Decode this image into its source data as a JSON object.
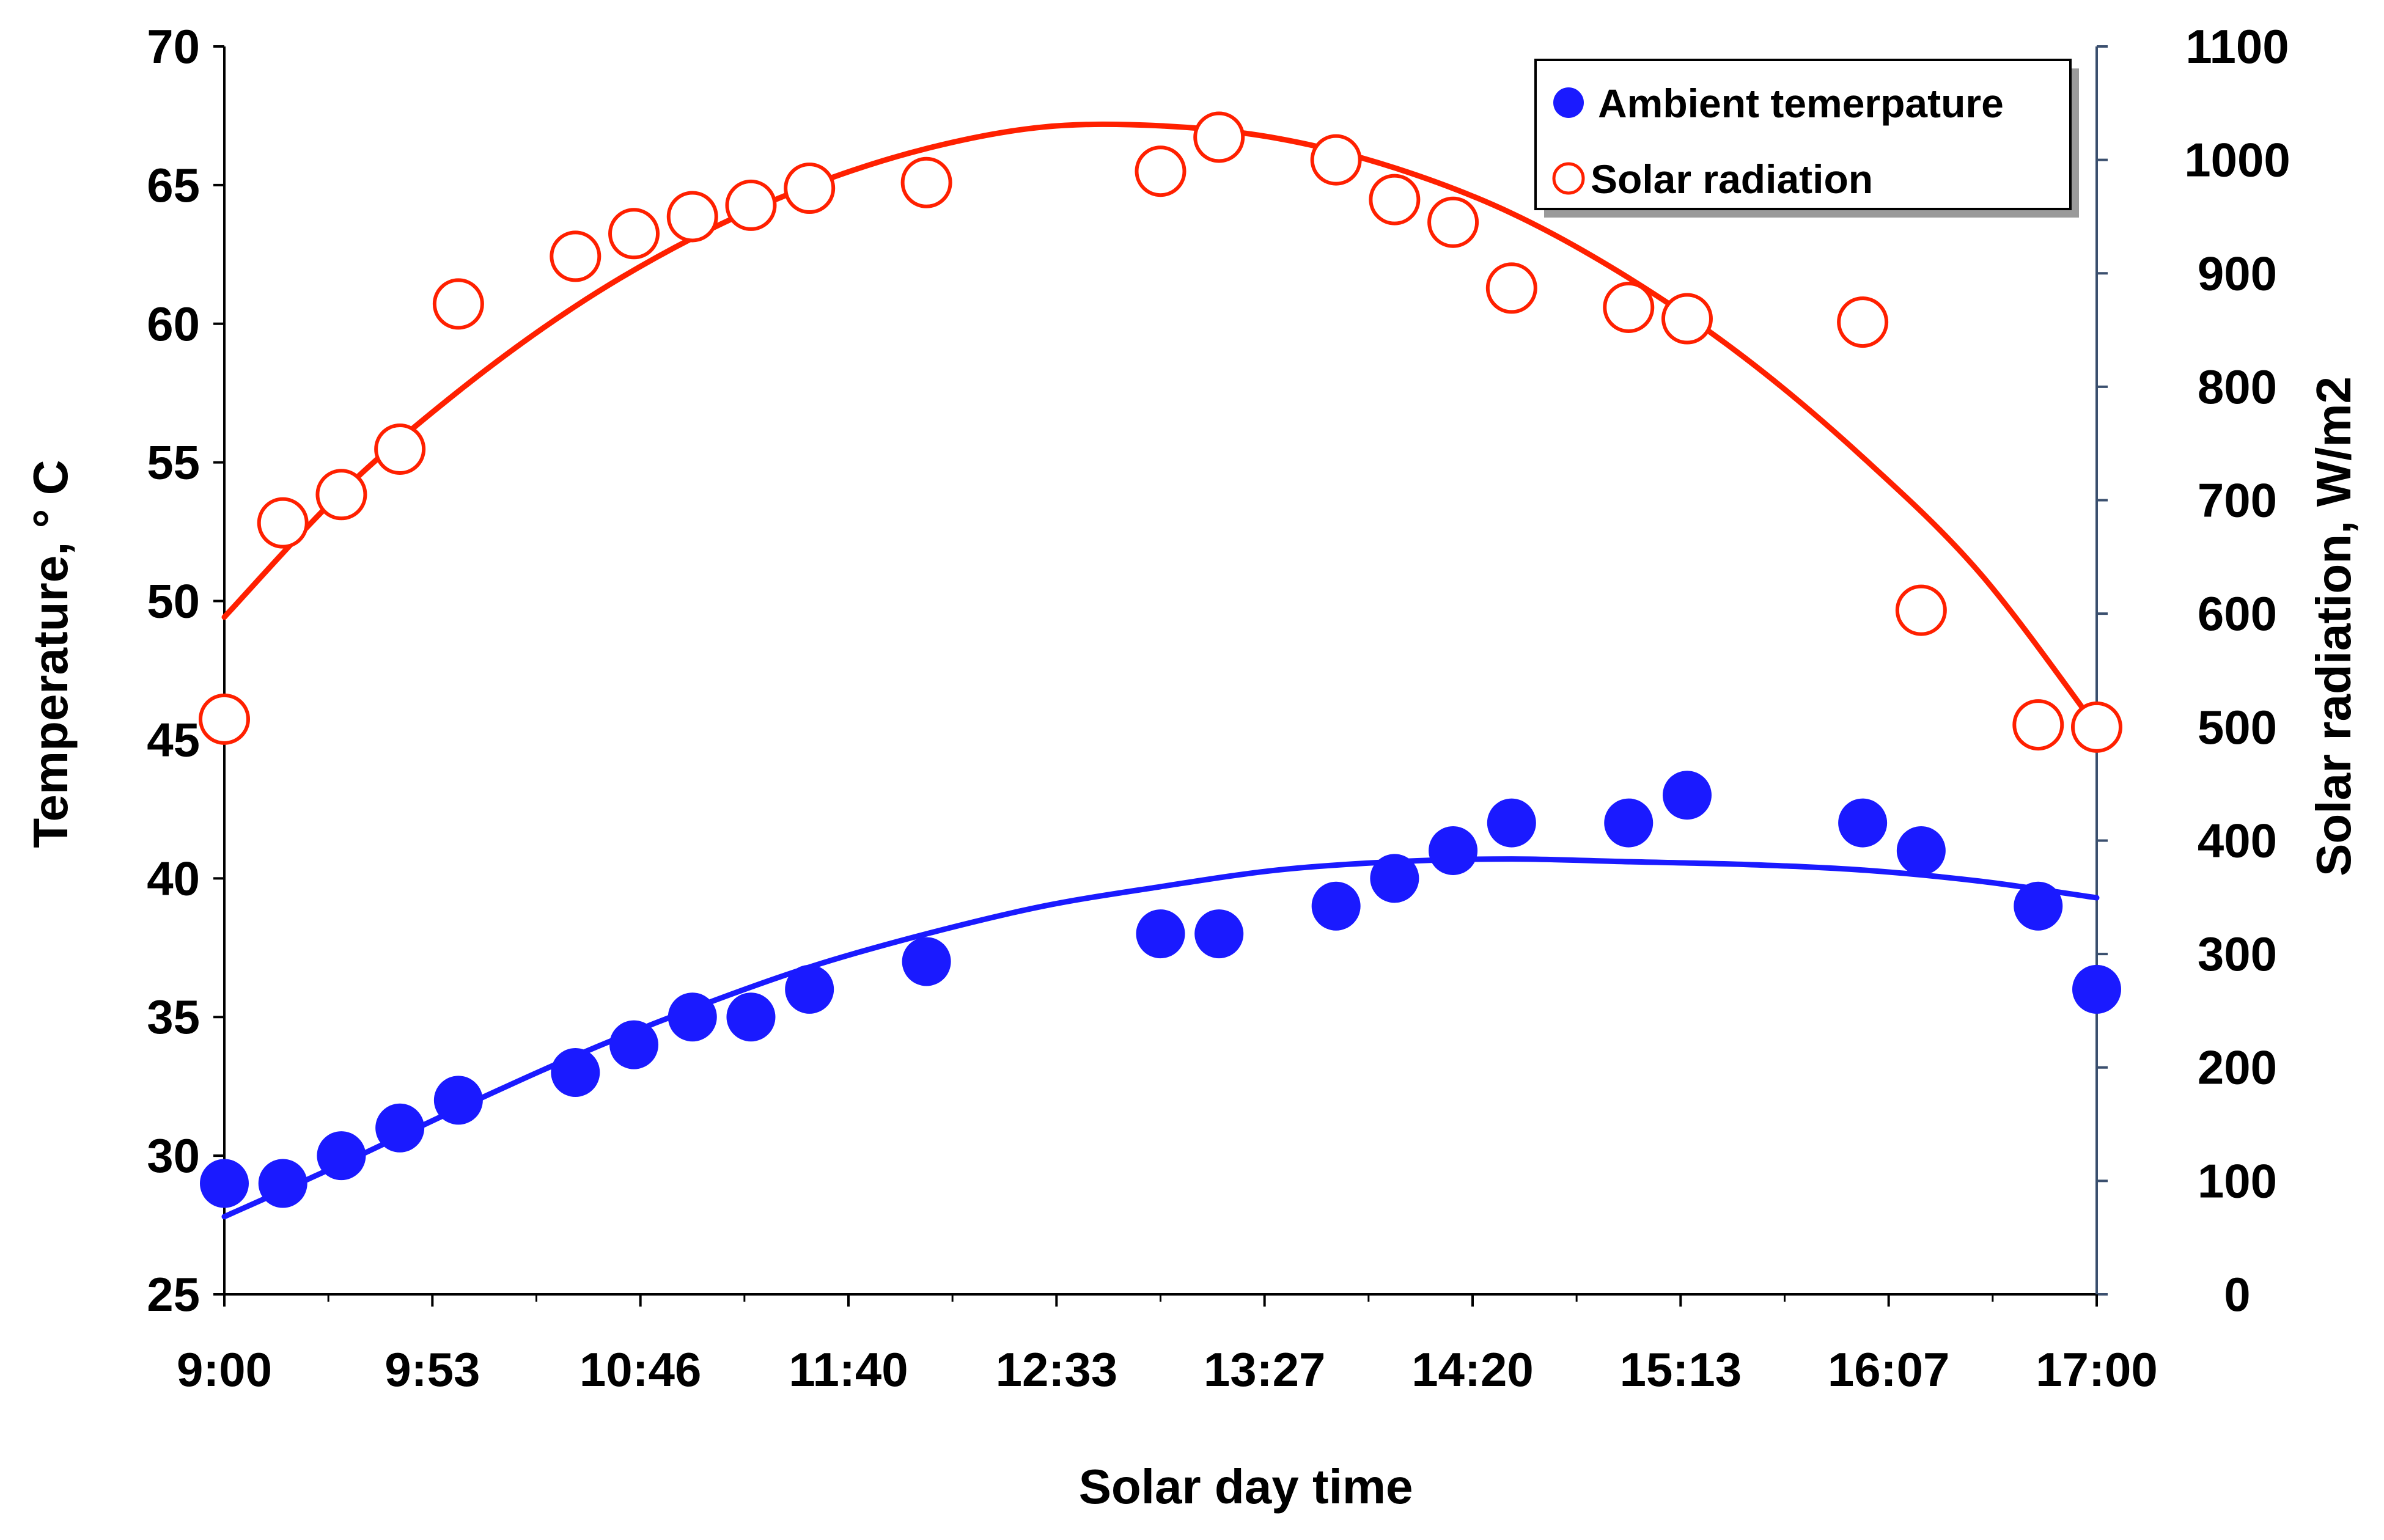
{
  "chart_data": {
    "type": "scatter",
    "title": "",
    "xlabel": "Solar day time",
    "ylabel": "Temperature, ° C",
    "y2label": "Solar radiation, W/m2",
    "x_tick_labels": [
      "9:00",
      "9:53",
      "10:46",
      "11:40",
      "12:33",
      "13:27",
      "14:20",
      "15:13",
      "16:07",
      "17:00"
    ],
    "xlim_minutes": [
      540,
      1020
    ],
    "ylim": [
      25,
      70
    ],
    "y_ticks": [
      25,
      30,
      35,
      40,
      45,
      50,
      55,
      60,
      65,
      70
    ],
    "y2lim": [
      0,
      1100
    ],
    "y2_ticks": [
      0,
      100,
      200,
      300,
      400,
      500,
      600,
      700,
      800,
      900,
      1000,
      1100
    ],
    "legend_position": "top-right",
    "series": [
      {
        "name": "Ambient temerpature",
        "axis": "left",
        "marker": "filled-circle",
        "color": "#1a1aff",
        "x_minutes": [
          540,
          555,
          570,
          585,
          600,
          630,
          645,
          660,
          675,
          690,
          720,
          780,
          795,
          825,
          840,
          855,
          870,
          900,
          915,
          960,
          975,
          1005,
          1020
        ],
        "values": [
          29,
          29,
          30,
          31,
          32,
          33,
          34,
          35,
          35,
          36,
          37,
          38,
          38,
          39,
          40,
          41,
          42,
          42,
          43,
          42,
          41,
          39,
          36
        ],
        "trendline": {
          "type": "poly2",
          "x_minutes": [
            540,
            570,
            600,
            630,
            660,
            690,
            720,
            750,
            780,
            810,
            840,
            870,
            900,
            930,
            960,
            990,
            1020
          ],
          "values": [
            27.8,
            29.7,
            31.7,
            33.6,
            35.3,
            36.8,
            38.0,
            39.0,
            39.7,
            40.3,
            40.6,
            40.7,
            40.6,
            40.5,
            40.3,
            39.9,
            39.3
          ]
        }
      },
      {
        "name": "Solar radiation",
        "axis": "right",
        "marker": "open-circle",
        "color": "#ff2000",
        "x_minutes": [
          540,
          555,
          570,
          585,
          600,
          630,
          645,
          660,
          675,
          690,
          720,
          780,
          795,
          825,
          840,
          855,
          870,
          900,
          915,
          960,
          975,
          1005,
          1020
        ],
        "values": [
          507,
          680,
          705,
          745,
          873,
          915,
          935,
          950,
          960,
          975,
          980,
          990,
          1020,
          1000,
          965,
          945,
          887,
          870,
          860,
          857,
          603,
          502,
          500
        ],
        "trendline": {
          "type": "poly2",
          "x_minutes": [
            540,
            570,
            600,
            630,
            660,
            690,
            720,
            750,
            780,
            810,
            840,
            870,
            900,
            930,
            960,
            990,
            1020
          ],
          "values": [
            597,
            707,
            796,
            871,
            931,
            977,
            1010,
            1029,
            1030,
            1019,
            993,
            953,
            896,
            825,
            738,
            636,
            500
          ]
        }
      }
    ]
  }
}
